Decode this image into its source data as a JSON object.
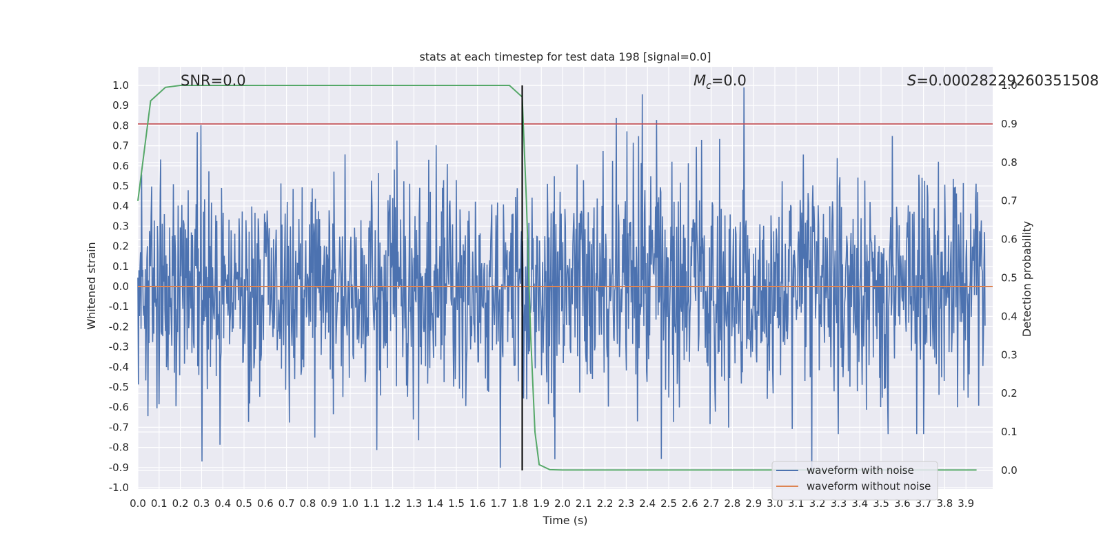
{
  "chart_data": {
    "type": "line",
    "title": "stats at each timestep for test data 198 [signal=0.0]",
    "xlabel": "Time (s)",
    "ylabel": "Whitened strain",
    "y2label": "Detection probability",
    "xlim": [
      0.0,
      4.0
    ],
    "ylim": [
      -1.0,
      1.0
    ],
    "y2lim": [
      0.0,
      1.0
    ],
    "xticks": [
      "0.0",
      "0.1",
      "0.2",
      "0.3",
      "0.4",
      "0.5",
      "0.6",
      "0.7",
      "0.8",
      "0.9",
      "1.0",
      "1.1",
      "1.2",
      "1.3",
      "1.4",
      "1.5",
      "1.6",
      "1.7",
      "1.8",
      "1.9",
      "2.0",
      "2.1",
      "2.2",
      "2.3",
      "2.4",
      "2.5",
      "2.6",
      "2.7",
      "2.8",
      "2.9",
      "3.0",
      "3.1",
      "3.2",
      "3.3",
      "3.4",
      "3.5",
      "3.6",
      "3.7",
      "3.8",
      "3.9"
    ],
    "yticks": [
      "1.0",
      "0.9",
      "0.8",
      "0.7",
      "0.6",
      "0.5",
      "0.4",
      "0.3",
      "0.2",
      "0.1",
      "0.0",
      "-0.1",
      "-0.2",
      "-0.3",
      "-0.4",
      "-0.5",
      "-0.6",
      "-0.7",
      "-0.8",
      "-0.9",
      "-1.0"
    ],
    "y2ticks": [
      "1.0",
      "0.9",
      "0.8",
      "0.7",
      "0.6",
      "0.5",
      "0.4",
      "0.3",
      "0.2",
      "0.1",
      "0.0"
    ],
    "annotations": {
      "snr": "SNR=0.0",
      "mc_symbol": "M",
      "mc_sub": "c",
      "mc_value": "=0.0",
      "s_symbol": "S",
      "s_value": "=0.00028229260351508"
    },
    "noise": {
      "name": "waveform with noise",
      "color": "#4c72b0",
      "n_samples": 1600,
      "seed": 198,
      "abs_max_approx": 1.0
    },
    "signal": {
      "name": "waveform without noise",
      "color": "#dd8452",
      "values": [
        0.0,
        0.0
      ]
    },
    "probability": {
      "name": "detection probability",
      "color": "#55a868",
      "x": [
        0.0,
        0.06,
        0.13,
        0.2,
        0.5,
        1.0,
        1.5,
        1.75,
        1.81,
        1.83,
        1.85,
        1.87,
        1.89,
        1.94,
        2.0,
        3.0,
        3.95
      ],
      "y": [
        0.7,
        0.96,
        0.995,
        1.0,
        1.0,
        1.0,
        1.0,
        1.0,
        0.97,
        0.7,
        0.35,
        0.1,
        0.015,
        0.002,
        0.001,
        0.001,
        0.001
      ]
    },
    "threshold": {
      "y2": 0.9,
      "color": "#c44e52"
    },
    "marker": {
      "x": 1.81,
      "color": "#000000"
    },
    "legend": {
      "placement": "bottom-right",
      "entries": [
        {
          "label": "waveform with noise",
          "color": "#4c72b0"
        },
        {
          "label": "waveform without noise",
          "color": "#dd8452"
        }
      ]
    },
    "background": "#eaeaf2",
    "grid": true
  }
}
